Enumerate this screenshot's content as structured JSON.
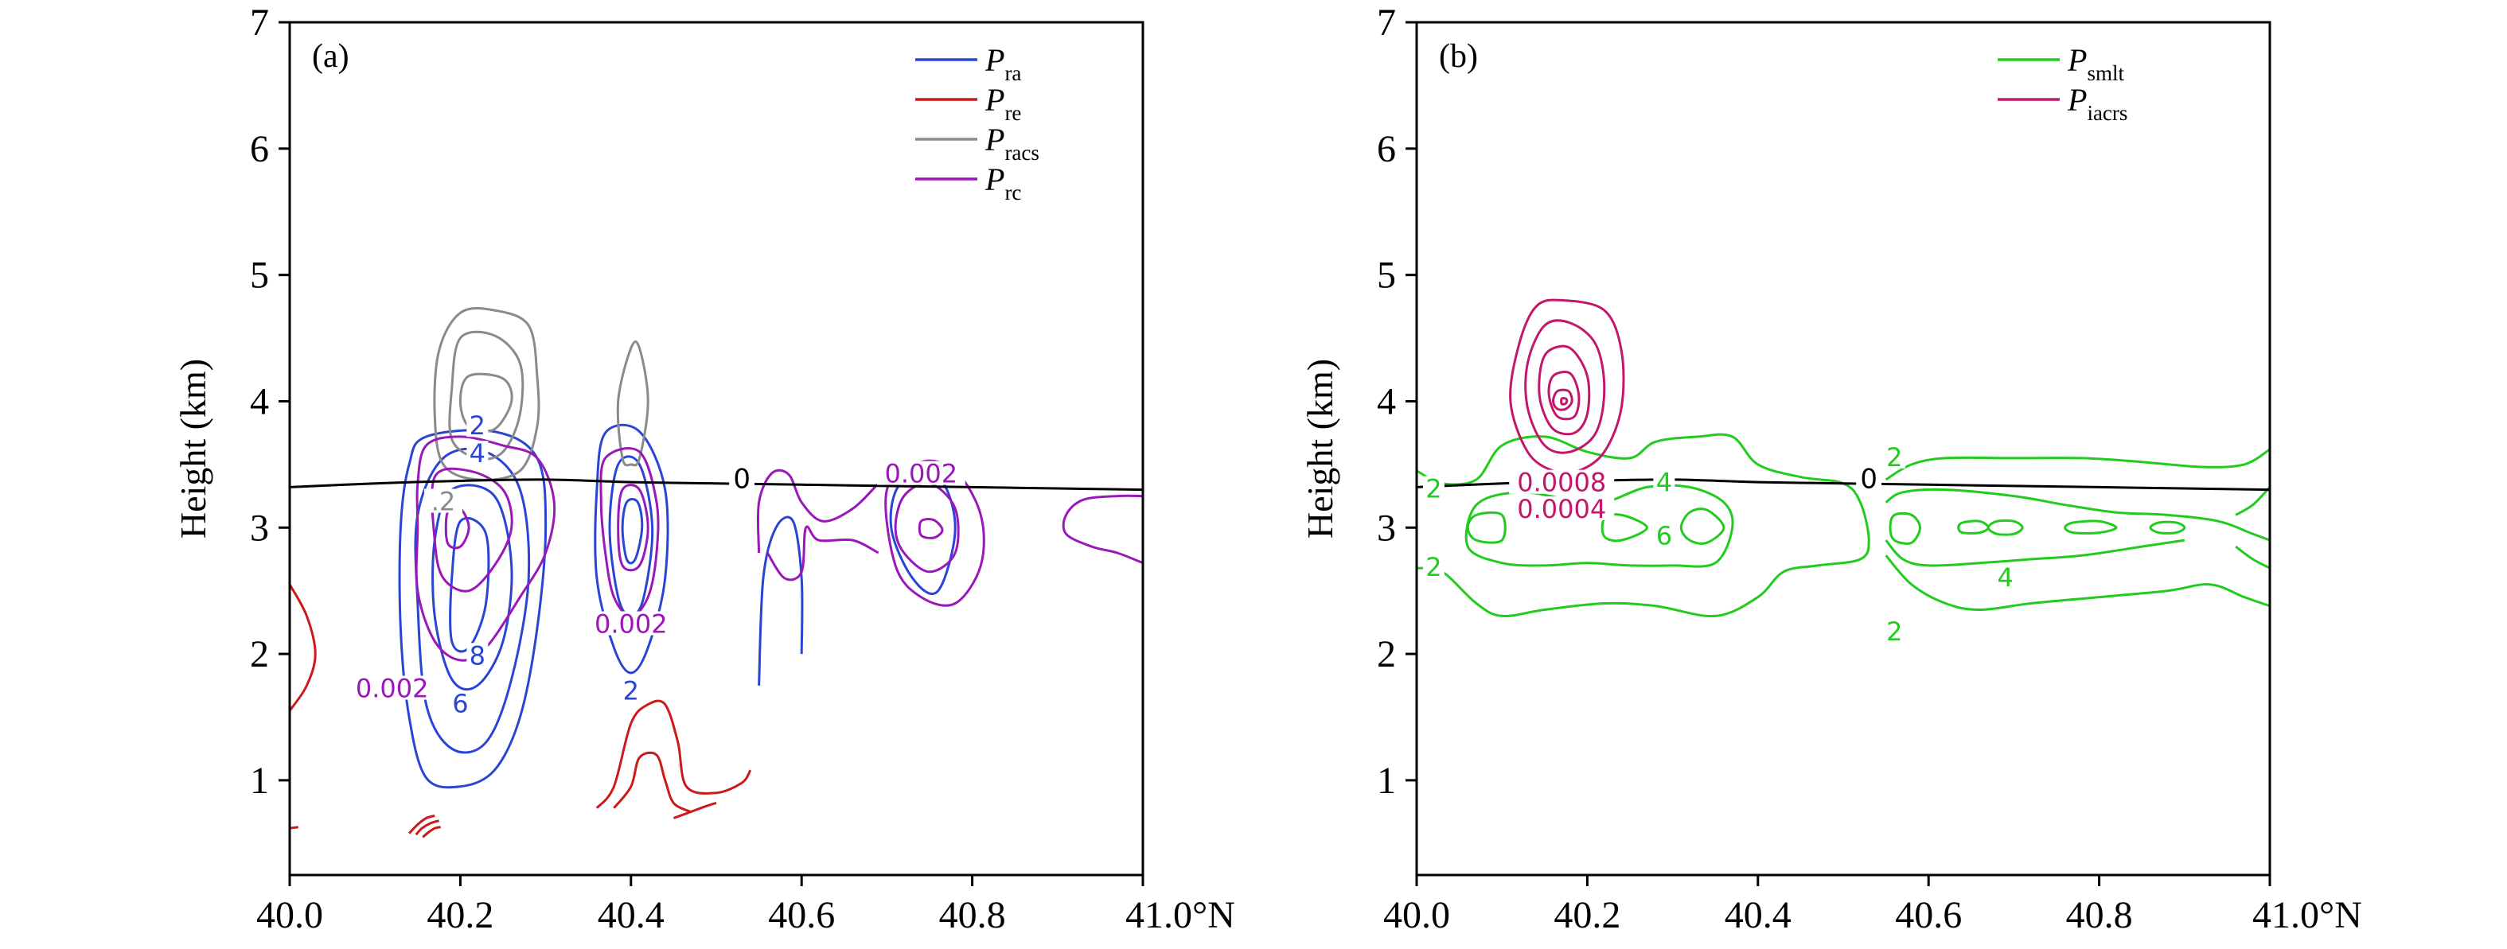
{
  "chart_data": [
    {
      "type": "contour",
      "panel_label": "(a)",
      "ylabel": "Height (km)",
      "xlabel": "",
      "xlim": [
        40.0,
        41.0
      ],
      "ylim": [
        0.25,
        7.0
      ],
      "xticks": [
        "40.0",
        "40.2",
        "40.4",
        "40.6",
        "40.8",
        "41.0°N"
      ],
      "yticks": [
        "1",
        "2",
        "3",
        "4",
        "5",
        "6",
        "7"
      ],
      "xtick_values": [
        40.0,
        40.2,
        40.4,
        40.6,
        40.8,
        41.0
      ],
      "ytick_values": [
        1,
        2,
        3,
        4,
        5,
        6,
        7
      ],
      "legend": [
        {
          "symbol": "P",
          "sub": "ra",
          "color": "#2a45d4"
        },
        {
          "symbol": "P",
          "sub": "re",
          "color": "#cc1a1a"
        },
        {
          "symbol": "P",
          "sub": "racs",
          "color": "#8a8a8a"
        },
        {
          "symbol": "P",
          "sub": "rc",
          "color": "#9a17b8"
        }
      ],
      "zero_line": {
        "label": "0",
        "x": [
          40.0,
          40.1,
          40.2,
          40.3,
          40.4,
          40.5,
          40.6,
          40.7,
          40.8,
          40.9,
          41.0
        ],
        "y": [
          3.32,
          3.35,
          3.37,
          3.38,
          3.36,
          3.35,
          3.34,
          3.33,
          3.32,
          3.31,
          3.3
        ]
      },
      "contour_labels": [
        {
          "text": "2",
          "x": 40.22,
          "y": 3.8,
          "color": "#2a45d4"
        },
        {
          "text": "4",
          "x": 40.22,
          "y": 3.58,
          "color": "#2a45d4"
        },
        {
          "text": ".2",
          "x": 40.18,
          "y": 3.2,
          "color": "#8a8a8a"
        },
        {
          "text": "8",
          "x": 40.22,
          "y": 1.98,
          "color": "#2a45d4"
        },
        {
          "text": "6",
          "x": 40.2,
          "y": 1.6,
          "color": "#2a45d4"
        },
        {
          "text": "0.002",
          "x": 40.12,
          "y": 1.72,
          "color": "#9a17b8"
        },
        {
          "text": "0.002",
          "x": 40.4,
          "y": 2.23,
          "color": "#9a17b8"
        },
        {
          "text": "2",
          "x": 40.4,
          "y": 1.7,
          "color": "#2a45d4"
        },
        {
          "text": "0.002",
          "x": 40.74,
          "y": 3.42,
          "color": "#9a17b8"
        }
      ],
      "series": [
        {
          "name": "P_ra",
          "color": "#2a45d4",
          "levels": [
            2,
            4,
            6,
            8
          ],
          "max_near": [
            [
              40.2,
              3.0
            ],
            [
              40.4,
              3.0
            ],
            [
              40.74,
              3.0
            ]
          ]
        },
        {
          "name": "P_re",
          "color": "#cc1a1a",
          "levels": [],
          "max_near": [
            [
              40.42,
              1.2
            ],
            [
              40.0,
              2.0
            ]
          ]
        },
        {
          "name": "P_racs",
          "color": "#8a8a8a",
          "levels": [
            0.2
          ],
          "max_near": [
            [
              40.22,
              4.0
            ],
            [
              40.4,
              4.0
            ]
          ]
        },
        {
          "name": "P_rc",
          "color": "#9a17b8",
          "levels": [
            0.002
          ],
          "max_near": [
            [
              40.2,
              3.0
            ],
            [
              40.4,
              3.0
            ],
            [
              40.75,
              3.0
            ]
          ]
        }
      ]
    },
    {
      "type": "contour",
      "panel_label": "(b)",
      "ylabel": "Height (km)",
      "xlabel": "",
      "xlim": [
        40.0,
        41.0
      ],
      "ylim": [
        0.25,
        7.0
      ],
      "xticks": [
        "40.0",
        "40.2",
        "40.4",
        "40.6",
        "40.8",
        "41.0°N"
      ],
      "yticks": [
        "1",
        "2",
        "3",
        "4",
        "5",
        "6",
        "7"
      ],
      "xtick_values": [
        40.0,
        40.2,
        40.4,
        40.6,
        40.8,
        41.0
      ],
      "ytick_values": [
        1,
        2,
        3,
        4,
        5,
        6,
        7
      ],
      "legend": [
        {
          "symbol": "P",
          "sub": "smlt",
          "color": "#22cc1f"
        },
        {
          "symbol": "P",
          "sub": "iacrs",
          "color": "#c2176a"
        }
      ],
      "zero_line": {
        "label": "0",
        "x": [
          40.0,
          40.1,
          40.2,
          40.3,
          40.4,
          40.5,
          40.6,
          40.7,
          40.8,
          40.9,
          41.0
        ],
        "y": [
          3.32,
          3.35,
          3.37,
          3.38,
          3.36,
          3.35,
          3.34,
          3.33,
          3.32,
          3.31,
          3.3
        ]
      },
      "contour_labels": [
        {
          "text": "2",
          "x": 40.02,
          "y": 3.3,
          "color": "#22cc1f"
        },
        {
          "text": "2",
          "x": 40.02,
          "y": 2.68,
          "color": "#22cc1f"
        },
        {
          "text": "4",
          "x": 40.29,
          "y": 3.35,
          "color": "#22cc1f"
        },
        {
          "text": "6",
          "x": 40.29,
          "y": 2.93,
          "color": "#22cc1f"
        },
        {
          "text": "0.0008",
          "x": 40.17,
          "y": 3.35,
          "color": "#c2176a"
        },
        {
          "text": "0.0004",
          "x": 40.17,
          "y": 3.14,
          "color": "#c2176a"
        },
        {
          "text": "2",
          "x": 40.56,
          "y": 3.55,
          "color": "#22cc1f"
        },
        {
          "text": "4",
          "x": 40.69,
          "y": 2.6,
          "color": "#22cc1f"
        },
        {
          "text": "2",
          "x": 40.56,
          "y": 2.17,
          "color": "#22cc1f"
        }
      ],
      "series": [
        {
          "name": "P_smlt",
          "color": "#22cc1f",
          "levels": [
            2,
            4,
            6
          ],
          "max_near": [
            [
              40.08,
              3.0
            ],
            [
              40.24,
              3.0
            ],
            [
              40.34,
              3.0
            ],
            [
              40.57,
              3.0
            ],
            [
              40.65,
              3.0
            ],
            [
              40.7,
              3.0
            ],
            [
              40.8,
              3.0
            ],
            [
              40.9,
              3.0
            ]
          ]
        },
        {
          "name": "P_iacrs",
          "color": "#c2176a",
          "levels": [
            0.0004,
            0.0008
          ],
          "max_near": [
            [
              40.17,
              4.0
            ]
          ]
        }
      ]
    }
  ]
}
